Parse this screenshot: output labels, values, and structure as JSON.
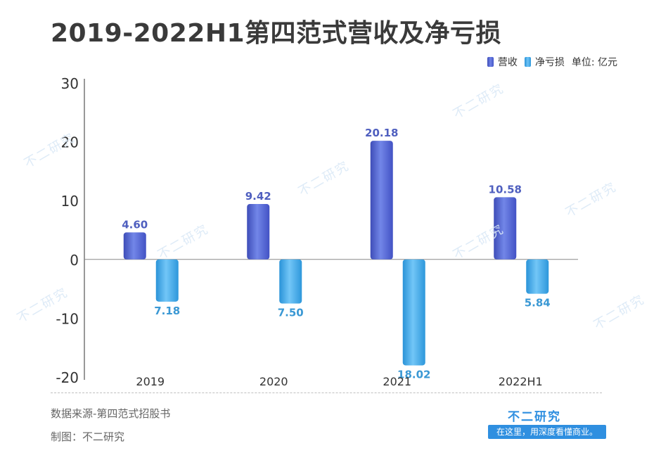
{
  "title": "2019-2022H1第四范式营收及净亏损",
  "legend": {
    "revenue": "营收",
    "loss": "净亏损",
    "unit": "单位: 亿元"
  },
  "footer": {
    "source": "数据来源-第四范式招股书",
    "maker": "制图：不二研究",
    "brand": "不二研究",
    "slogan": "在这里，用深度看懂商业。"
  },
  "watermark": "不二研究",
  "colors": {
    "revenue": "#4a5bcf",
    "loss": "#3aa8ea",
    "revenue_label": "#4f5fbf",
    "loss_label": "#3a98d4"
  },
  "chart_data": {
    "type": "bar",
    "title": "2019-2022H1第四范式营收及净亏损",
    "categories": [
      "2019",
      "2020",
      "2021",
      "2022H1"
    ],
    "series": [
      {
        "name": "营收",
        "values": [
          4.6,
          9.42,
          20.18,
          10.58
        ],
        "labels": [
          "4.60",
          "9.42",
          "20.18",
          "10.58"
        ]
      },
      {
        "name": "净亏损",
        "values": [
          -7.18,
          -7.5,
          -18.02,
          -5.84
        ],
        "labels": [
          "7.18",
          "7.50",
          "18.02",
          "5.84"
        ]
      }
    ],
    "ylim": [
      -20,
      30
    ],
    "yticks": [
      30,
      20,
      10,
      0,
      -10,
      -20
    ],
    "ylabel": "",
    "xlabel": "",
    "unit": "单位: 亿元",
    "legend_position": "top-right",
    "grid": false
  }
}
